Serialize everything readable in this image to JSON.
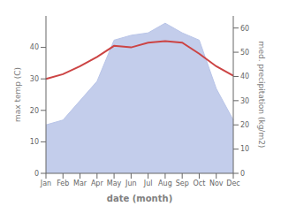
{
  "chart_data": {
    "type": "line",
    "xlabel": "date (month)",
    "ylabel": "max temp (C)",
    "y2label": "med. precipitation (kg/m2)",
    "categories": [
      "Jan",
      "Feb",
      "Mar",
      "Apr",
      "May",
      "Jun",
      "Jul",
      "Aug",
      "Sep",
      "Oct",
      "Nov",
      "Dec"
    ],
    "series": [
      {
        "type": "area",
        "axis": "y2",
        "color": "#b8c4e8",
        "values": [
          20,
          22,
          30,
          38,
          55,
          57,
          58,
          62,
          58,
          55,
          35,
          22
        ]
      },
      {
        "type": "line",
        "color": "#cc4444",
        "values": [
          30.0,
          31.5,
          34.0,
          37.0,
          40.5,
          40.0,
          41.5,
          42.0,
          41.5,
          38.0,
          34.0,
          31.0
        ]
      }
    ],
    "ylim": [
      0,
      50
    ],
    "yticks": [
      0,
      10,
      20,
      30,
      40
    ],
    "y2lim": [
      0,
      65
    ],
    "y2ticks": [
      0,
      10,
      20,
      30,
      40,
      50,
      60
    ],
    "grid": false
  }
}
